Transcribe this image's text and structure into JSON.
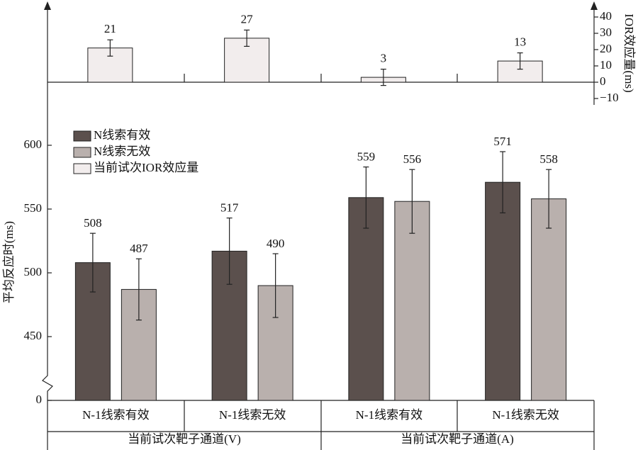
{
  "chart_data": [
    {
      "type": "bar",
      "ylabel": "平均反应时(ms)",
      "categories": [
        "N-1线索有效",
        "N-1线索无效",
        "N-1线索有效",
        "N-1线索无效"
      ],
      "groups": [
        "当前试次靶子通道(V)",
        "当前试次靶子通道(A)"
      ],
      "series": [
        {
          "name": "N线索有效",
          "color": "#5b504d",
          "values": [
            508,
            517,
            559,
            571
          ],
          "errors": [
            23,
            26,
            24,
            24
          ]
        },
        {
          "name": "N线索无效",
          "color": "#b9b0ad",
          "values": [
            487,
            490,
            556,
            558
          ],
          "errors": [
            24,
            25,
            25,
            23
          ]
        }
      ],
      "ylim": [
        0,
        650
      ],
      "ybreak": [
        0,
        400
      ],
      "yticks": [
        0,
        450,
        500,
        550,
        600
      ]
    },
    {
      "type": "bar",
      "ylabel": "IOR效应量(ms)",
      "series": [
        {
          "name": "当前试次IOR效应量",
          "color": "#f2eded",
          "values": [
            21,
            27,
            3,
            13
          ],
          "errors": [
            5,
            5,
            5,
            5
          ]
        }
      ],
      "ylim": [
        -10,
        48
      ],
      "yticks": [
        {
          "value": -10,
          "label": "−10"
        },
        0,
        10,
        20,
        30,
        40
      ]
    }
  ]
}
